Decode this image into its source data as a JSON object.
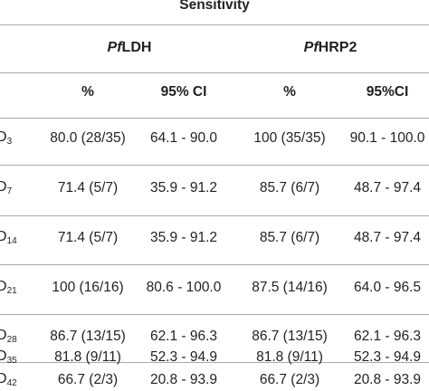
{
  "table": {
    "title": "Sensitivity",
    "groups": [
      {
        "prefix": "Pf",
        "name": "LDH"
      },
      {
        "prefix": "Pf",
        "name": "HRP2"
      }
    ],
    "subheaders": [
      "%",
      "95% CI",
      "%",
      "95%CI"
    ],
    "rows": [
      {
        "label": "D",
        "sub": "3",
        "cells": [
          "80.0 (28/35)",
          "64.1 - 90.0",
          "100 (35/35)",
          "90.1 - 100.0"
        ]
      },
      {
        "label": "D",
        "sub": "7",
        "cells": [
          "71.4 (5/7)",
          "35.9 - 91.2",
          "85.7 (6/7)",
          "48.7 - 97.4"
        ]
      },
      {
        "label": "D",
        "sub": "14",
        "cells": [
          "71.4 (5/7)",
          "35.9 - 91.2",
          "85.7 (6/7)",
          "48.7 - 97.4"
        ]
      },
      {
        "label": "D",
        "sub": "21",
        "cells": [
          "100 (16/16)",
          "80.6 - 100.0",
          "87.5 (14/16)",
          "64.0 - 96.5"
        ]
      },
      {
        "label": "D",
        "sub": "28",
        "cells": [
          "86.7 (13/15)",
          "62.1 - 96.3",
          "86.7 (13/15)",
          "62.1 - 96.3"
        ]
      },
      {
        "label": "D",
        "sub": "35",
        "cells": [
          "81.8 (9/11)",
          "52.3 - 94.9",
          "81.8 (9/11)",
          "52.3 - 94.9"
        ]
      },
      {
        "label": "D",
        "sub": "42",
        "cells": [
          "66.7 (2/3)",
          "20.8 - 93.9",
          "66.7 (2/3)",
          "20.8 - 93.9"
        ]
      }
    ]
  }
}
